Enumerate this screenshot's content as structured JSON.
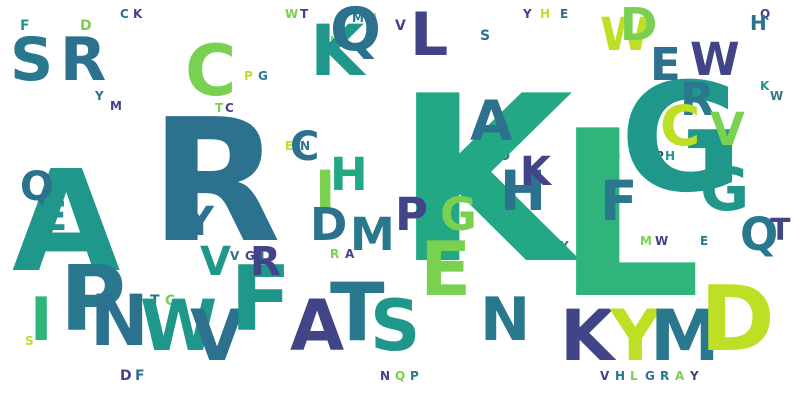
{
  "big_words": [
    {
      "text": "ARKLG",
      "color": "#2a788e"
    },
    {
      "text": "ENKYMD",
      "color": "#7ad151"
    },
    {
      "text": "IPNWVFATS",
      "color": "#2a788e"
    }
  ],
  "words": [
    {
      "text": "A",
      "color": "#1f988b"
    },
    {
      "text": "R",
      "color": "#2c728e"
    },
    {
      "text": "K",
      "color": "#22a884"
    },
    {
      "text": "L",
      "color": "#2fb47c"
    },
    {
      "text": "G",
      "color": "#1f988b"
    },
    {
      "text": "E",
      "color": "#7ad151"
    },
    {
      "text": "N",
      "color": "#2a788e"
    },
    {
      "text": "K",
      "color": "#414487"
    },
    {
      "text": "Y",
      "color": "#bddf26"
    },
    {
      "text": "M",
      "color": "#2a788e"
    },
    {
      "text": "D",
      "color": "#bddf26"
    },
    {
      "text": "I",
      "color": "#2fb47c"
    },
    {
      "text": "P",
      "color": "#2a788e"
    },
    {
      "text": "N",
      "color": "#2c728e"
    },
    {
      "text": "W",
      "color": "#1f988b"
    },
    {
      "text": "V",
      "color": "#2c728e"
    },
    {
      "text": "F",
      "color": "#1f988b"
    },
    {
      "text": "A",
      "color": "#414487"
    },
    {
      "text": "T",
      "color": "#2a788e"
    },
    {
      "text": "S",
      "color": "#1f988b"
    },
    {
      "text": "S",
      "color": "#2a788e"
    },
    {
      "text": "R",
      "color": "#2c728e"
    },
    {
      "text": "C",
      "color": "#7ad151"
    },
    {
      "text": "K",
      "color": "#1f988b"
    },
    {
      "text": "Q",
      "color": "#2c728e"
    },
    {
      "text": "L",
      "color": "#414487"
    },
    {
      "text": "W",
      "color": "#bddf26"
    },
    {
      "text": "E",
      "color": "#2c728e"
    },
    {
      "text": "W",
      "color": "#414487"
    },
    {
      "text": "R",
      "color": "#2a788e"
    },
    {
      "text": "V",
      "color": "#7ad151"
    },
    {
      "text": "C",
      "color": "#bddf26"
    },
    {
      "text": "A",
      "color": "#2c728e"
    },
    {
      "text": "H",
      "color": "#2c728e"
    },
    {
      "text": "F",
      "color": "#2a788e"
    },
    {
      "text": "K",
      "color": "#414487"
    },
    {
      "text": "G",
      "color": "#1f988b"
    },
    {
      "text": "Q",
      "color": "#2a788e"
    },
    {
      "text": "I",
      "color": "#7ad151"
    },
    {
      "text": "H",
      "color": "#22a884"
    },
    {
      "text": "D",
      "color": "#2c728e"
    },
    {
      "text": "M",
      "color": "#2a788e"
    },
    {
      "text": "P",
      "color": "#414487"
    },
    {
      "text": "G",
      "color": "#7ad151"
    },
    {
      "text": "Y",
      "color": "#2c728e"
    },
    {
      "text": "V",
      "color": "#1f988b"
    },
    {
      "text": "R",
      "color": "#414487"
    },
    {
      "text": "C",
      "color": "#2c728e"
    },
    {
      "text": "D",
      "color": "#7ad151"
    },
    {
      "text": "H",
      "color": "#2c728e"
    },
    {
      "text": "T",
      "color": "#414487"
    },
    {
      "text": "Q",
      "color": "#2c728e"
    },
    {
      "text": "E",
      "color": "#1f988b"
    }
  ],
  "small_words": [
    {
      "text": "C",
      "color": "#2c728e"
    },
    {
      "text": "K",
      "color": "#414487"
    },
    {
      "text": "W",
      "color": "#7ad151"
    },
    {
      "text": "T",
      "color": "#414487"
    },
    {
      "text": "M",
      "color": "#2a788e"
    },
    {
      "text": "N",
      "color": "#bddf26"
    },
    {
      "text": "Y",
      "color": "#414487"
    },
    {
      "text": "H",
      "color": "#bddf26"
    },
    {
      "text": "E",
      "color": "#2c728e"
    },
    {
      "text": "Q",
      "color": "#414487"
    },
    {
      "text": "F",
      "color": "#1f988b"
    },
    {
      "text": "D",
      "color": "#7ad151"
    },
    {
      "text": "V",
      "color": "#414487"
    },
    {
      "text": "S",
      "color": "#2c728e"
    },
    {
      "text": "P",
      "color": "#bddf26"
    },
    {
      "text": "G",
      "color": "#2a788e"
    },
    {
      "text": "L",
      "color": "#414487"
    },
    {
      "text": "I",
      "color": "#7ad151"
    },
    {
      "text": "A",
      "color": "#2c728e"
    },
    {
      "text": "R",
      "color": "#414487"
    },
    {
      "text": "K",
      "color": "#1f988b"
    },
    {
      "text": "W",
      "color": "#2a788e"
    },
    {
      "text": "Y",
      "color": "#2c728e"
    },
    {
      "text": "M",
      "color": "#414487"
    },
    {
      "text": "T",
      "color": "#7ad151"
    },
    {
      "text": "C",
      "color": "#414487"
    },
    {
      "text": "E",
      "color": "#bddf26"
    },
    {
      "text": "N",
      "color": "#2a788e"
    },
    {
      "text": "S",
      "color": "#414487"
    },
    {
      "text": "D",
      "color": "#2c728e"
    },
    {
      "text": "F",
      "color": "#7ad151"
    },
    {
      "text": "Q",
      "color": "#2a788e"
    },
    {
      "text": "P",
      "color": "#414487"
    },
    {
      "text": "H",
      "color": "#1f988b"
    },
    {
      "text": "V",
      "color": "#2c728e"
    },
    {
      "text": "G",
      "color": "#414487"
    },
    {
      "text": "L",
      "color": "#2a788e"
    },
    {
      "text": "R",
      "color": "#7ad151"
    },
    {
      "text": "A",
      "color": "#414487"
    },
    {
      "text": "I",
      "color": "#2c728e"
    },
    {
      "text": "K",
      "color": "#bddf26"
    },
    {
      "text": "Y",
      "color": "#2a788e"
    },
    {
      "text": "M",
      "color": "#7ad151"
    },
    {
      "text": "W",
      "color": "#414487"
    },
    {
      "text": "E",
      "color": "#2a788e"
    },
    {
      "text": "T",
      "color": "#2c728e"
    },
    {
      "text": "C",
      "color": "#7ad151"
    },
    {
      "text": "S",
      "color": "#bddf26"
    },
    {
      "text": "D",
      "color": "#414487"
    },
    {
      "text": "F",
      "color": "#2c728e"
    },
    {
      "text": "N",
      "color": "#414487"
    },
    {
      "text": "Q",
      "color": "#7ad151"
    },
    {
      "text": "P",
      "color": "#2a788e"
    },
    {
      "text": "V",
      "color": "#414487"
    },
    {
      "text": "H",
      "color": "#2a788e"
    },
    {
      "text": "L",
      "color": "#7ad151"
    },
    {
      "text": "G",
      "color": "#2c728e"
    },
    {
      "text": "R",
      "color": "#2a788e"
    },
    {
      "text": "A",
      "color": "#7ad151"
    },
    {
      "text": "Y",
      "color": "#414487"
    }
  ]
}
